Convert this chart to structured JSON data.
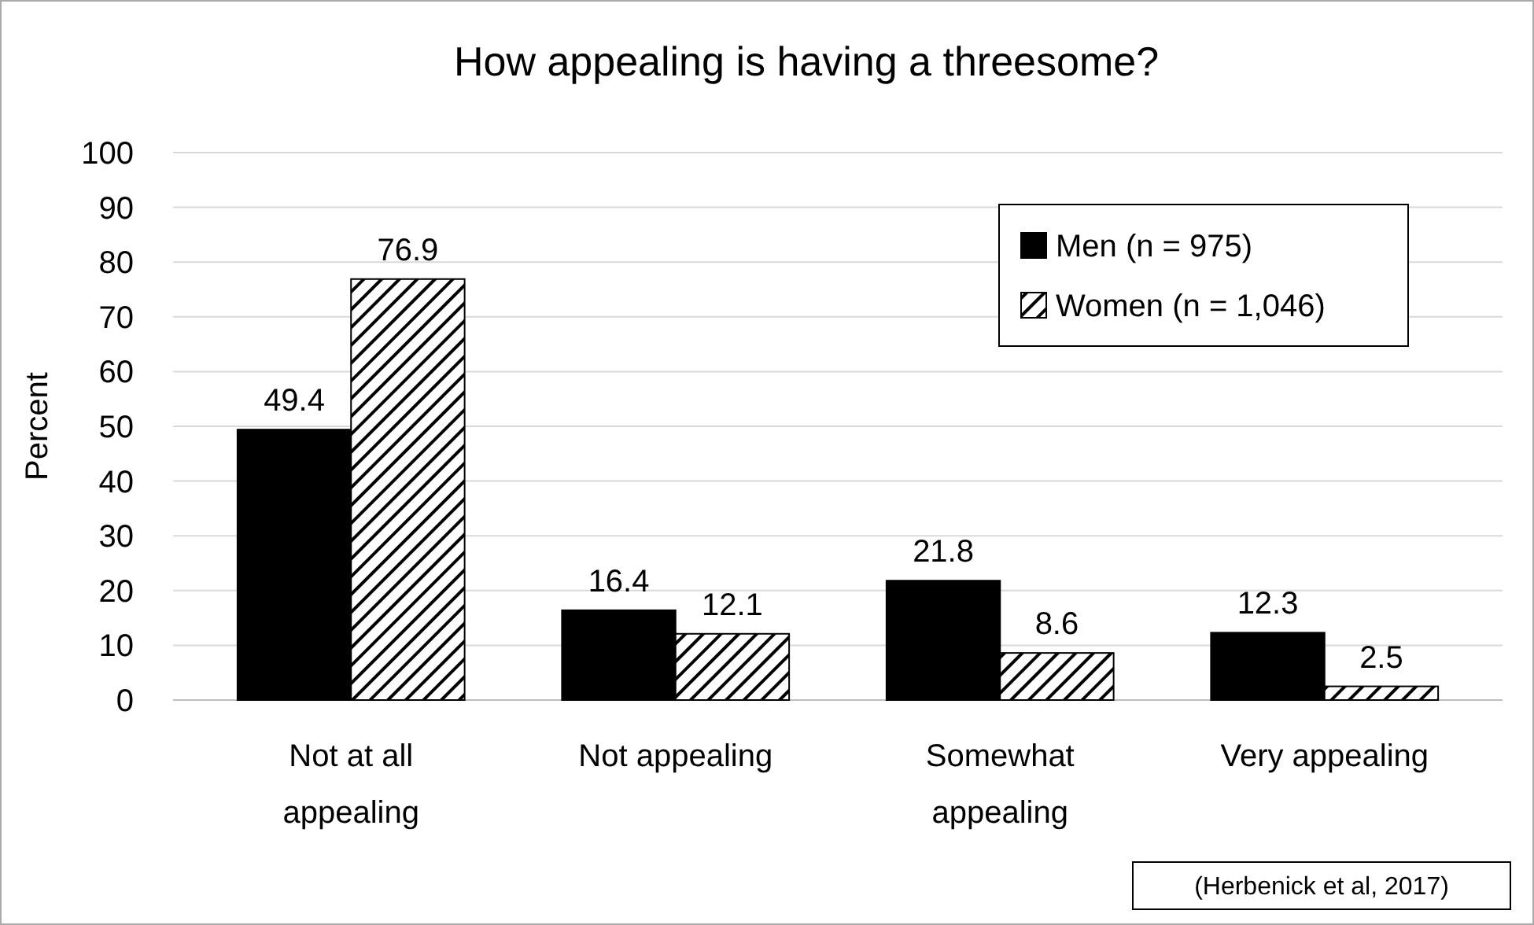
{
  "chart_data": {
    "type": "bar",
    "title": "How appealing is having a threesome?",
    "ylabel": "Percent",
    "categories": [
      "Not at all appealing",
      "Not appealing",
      "Somewhat appealing",
      "Very appealing"
    ],
    "series": [
      {
        "name": "Men (n = 975)",
        "color": "#000000",
        "values": [
          49.4,
          16.4,
          21.8,
          12.3
        ]
      },
      {
        "name": "Women (n = 1,046)",
        "color": "#000000",
        "values": [
          76.9,
          12.1,
          8.6,
          2.5
        ]
      }
    ],
    "ylim": [
      0,
      100
    ],
    "yticks": [
      0,
      10,
      20,
      30,
      40,
      50,
      60,
      70,
      80,
      90,
      100
    ],
    "grid": "y",
    "legend": "top right",
    "data_labels": true,
    "annotations": [
      "(Herbenick et al, 2017)"
    ]
  }
}
